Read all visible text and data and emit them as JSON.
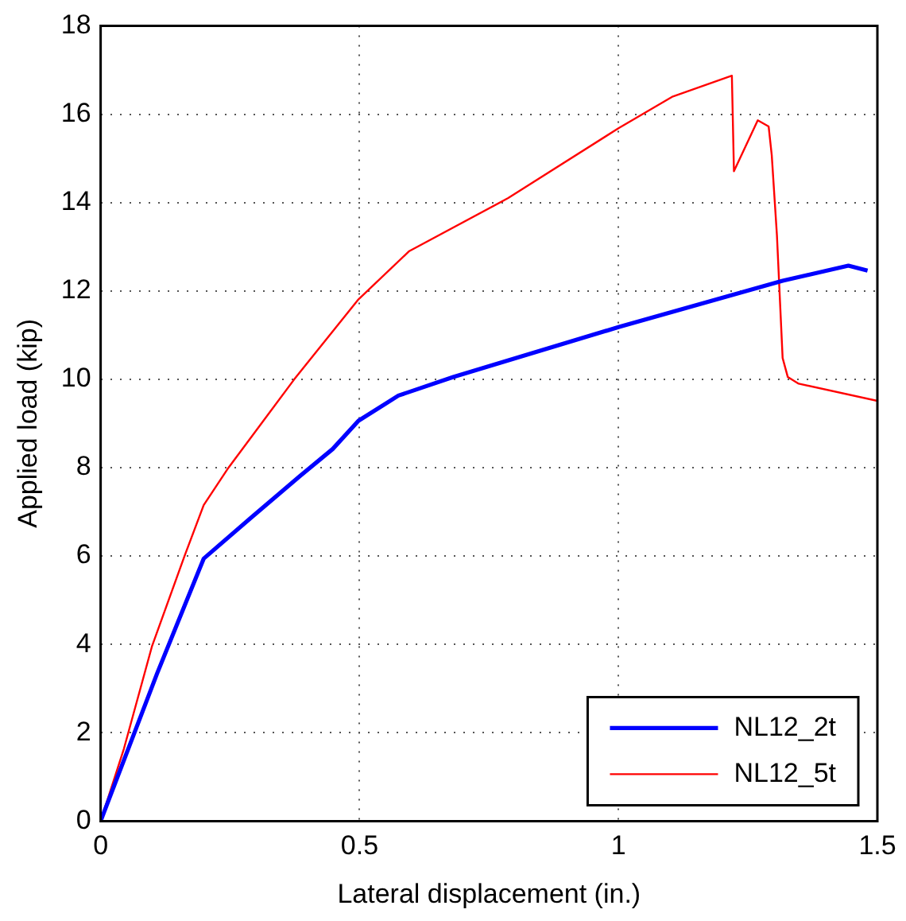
{
  "chart_data": {
    "type": "line",
    "xlabel": "Lateral displacement (in.)",
    "ylabel": "Applied load (kip)",
    "xlim": [
      0,
      1.5
    ],
    "xticks": [
      0,
      0.5,
      1,
      1.5
    ],
    "ylim": [
      0,
      18
    ],
    "yticks": [
      0,
      2,
      4,
      6,
      8,
      10,
      12,
      14,
      16,
      18
    ],
    "grid": true,
    "legend": "bottom right",
    "marker": "none",
    "line_style": "solid",
    "series": [
      {
        "name": "NL12_2t",
        "color": "#0000ff",
        "x": [
          0,
          0.109,
          0.199,
          0.289,
          0.385,
          0.448,
          0.498,
          0.575,
          0.681,
          1.0,
          1.317,
          1.444,
          1.481
        ],
        "values": [
          0,
          3.34,
          5.94,
          6.85,
          7.81,
          8.42,
          9.06,
          9.63,
          10.05,
          11.18,
          12.23,
          12.57,
          12.46
        ]
      },
      {
        "name": "NL12_5t",
        "color": "#ff0000",
        "x": [
          0,
          0.045,
          0.099,
          0.162,
          0.199,
          0.247,
          0.374,
          0.498,
          0.596,
          0.787,
          1.0,
          1.105,
          1.219,
          1.223,
          1.269,
          1.29,
          1.296,
          1.306,
          1.317,
          1.327,
          1.348,
          1.5
        ],
        "values": [
          0,
          1.64,
          3.95,
          6.0,
          7.15,
          8.0,
          10.0,
          11.81,
          12.9,
          14.1,
          15.68,
          16.4,
          16.87,
          14.71,
          15.86,
          15.72,
          15.07,
          13.26,
          10.48,
          10.05,
          9.9,
          9.51
        ]
      }
    ]
  }
}
